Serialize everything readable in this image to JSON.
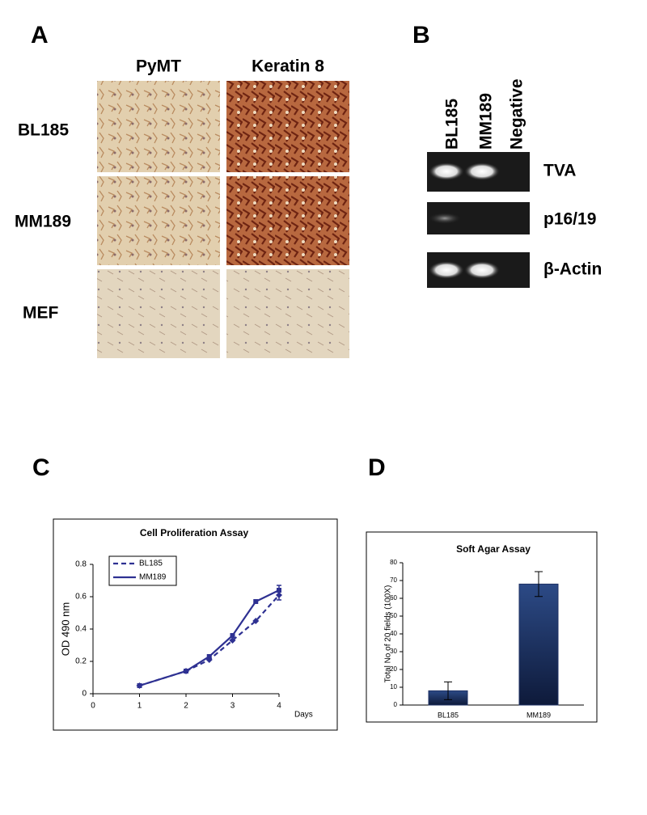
{
  "panel_a": {
    "label": "A",
    "columns": [
      "PyMT",
      "Keratin 8"
    ],
    "rows": [
      "BL185",
      "MM189",
      "MEF"
    ]
  },
  "panel_b": {
    "label": "B",
    "lanes": [
      "BL185",
      "MM189",
      "Negative"
    ],
    "bands": [
      "TVA",
      "p16/19",
      "β-Actin"
    ]
  },
  "chart_data": [
    {
      "type": "line",
      "panel_label": "C",
      "title": "Cell Proliferation Assay",
      "y_label": "OD 490 nm",
      "x_label": "Days",
      "x": [
        1,
        2,
        2.5,
        3,
        3.5,
        4
      ],
      "xlim": [
        0,
        4
      ],
      "xticks": [
        0,
        1,
        2,
        3,
        4
      ],
      "ylim": [
        0,
        0.8
      ],
      "yticks": [
        0,
        0.2,
        0.4,
        0.6,
        0.8
      ],
      "series": [
        {
          "name": "BL185",
          "color": "#2e3192",
          "dashed": true,
          "marker": "diamond",
          "values": [
            0.05,
            0.14,
            0.21,
            0.33,
            0.45,
            0.61
          ],
          "errors": [
            null,
            null,
            null,
            null,
            null,
            0.03
          ]
        },
        {
          "name": "MM189",
          "color": "#2e3192",
          "dashed": false,
          "marker": "square",
          "values": [
            0.05,
            0.14,
            0.23,
            0.36,
            0.57,
            0.64
          ],
          "errors": [
            null,
            null,
            null,
            null,
            null,
            0.03
          ]
        }
      ]
    },
    {
      "type": "bar",
      "panel_label": "D",
      "title": "Soft Agar Assay",
      "y_label": "Total No of 20 fields (100X)",
      "categories": [
        "BL185",
        "MM189"
      ],
      "values": [
        8,
        68
      ],
      "errors": [
        5,
        7
      ],
      "color": "#1f3264",
      "ylim": [
        0,
        80
      ],
      "yticks": [
        0,
        10,
        20,
        30,
        40,
        50,
        60,
        70,
        80
      ]
    }
  ]
}
